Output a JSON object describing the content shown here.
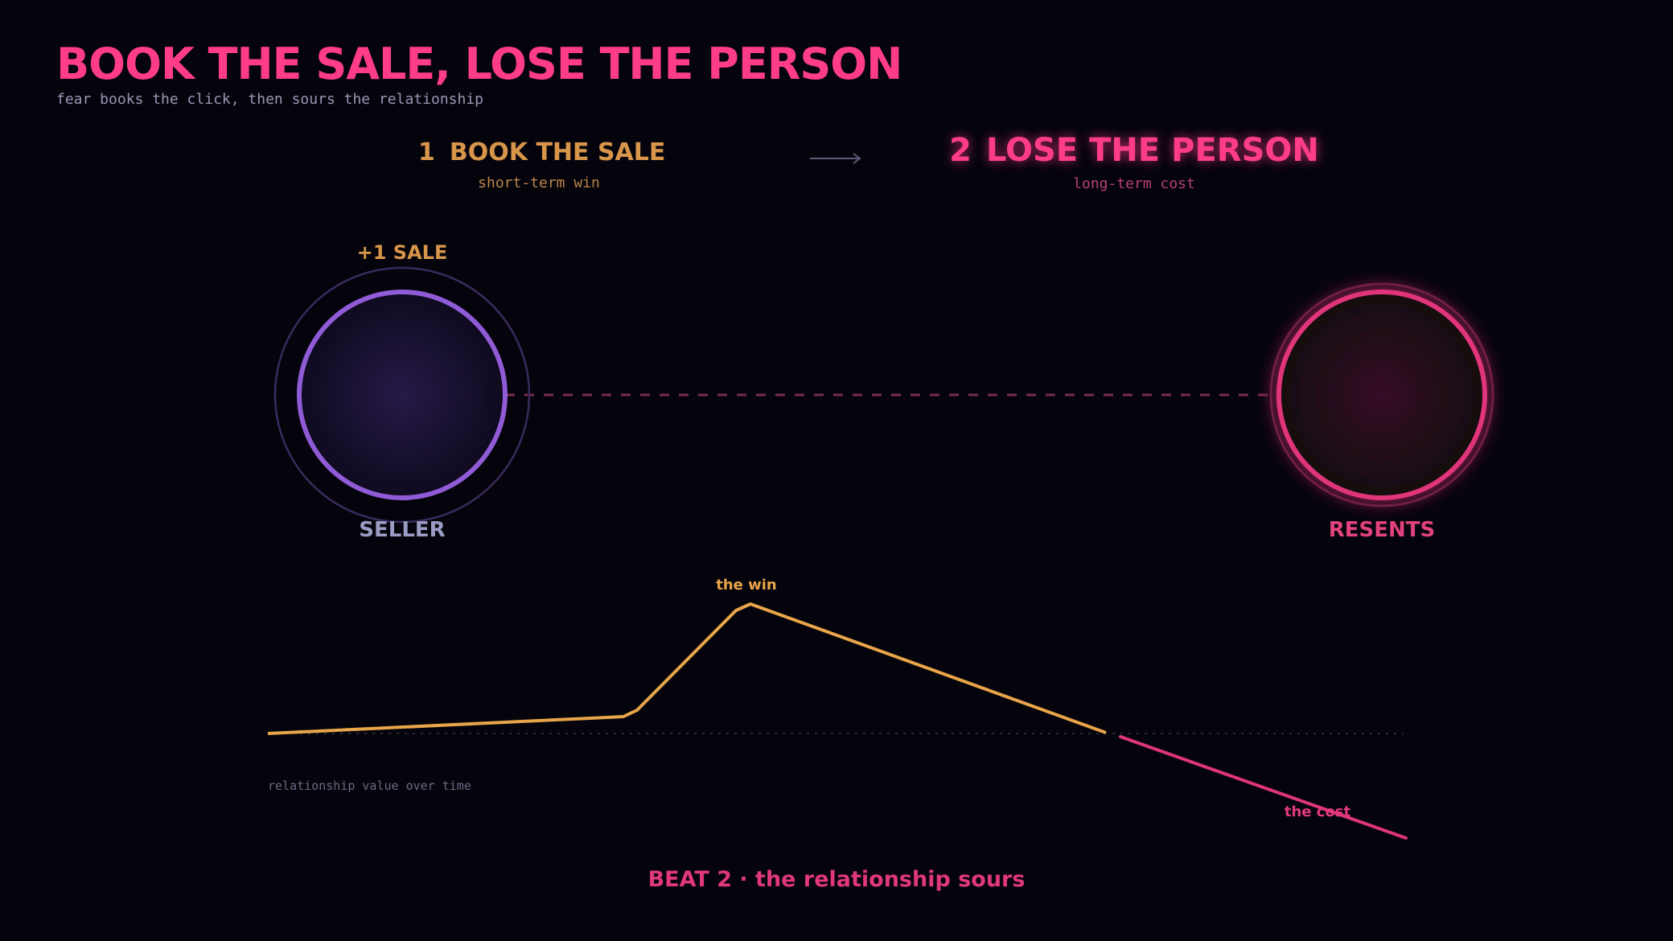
{
  "header": {
    "title": "BOOK THE SALE, LOSE THE PERSON",
    "subtitle": "fear books the click, then sours the relationship"
  },
  "steps": [
    {
      "num": "1",
      "label": "BOOK THE SALE",
      "sub": "short-term win",
      "color": "#d7964a"
    },
    {
      "num": "2",
      "label": "LOSE THE PERSON",
      "sub": "long-term cost",
      "color": "#ff3d86",
      "active": true
    }
  ],
  "nodes": {
    "seller": {
      "top_label": "+1 SALE",
      "label": "SELLER",
      "ring_color": "#8f5bd6"
    },
    "buyer": {
      "label": "RESENTS",
      "ring_color": "#e0357a"
    }
  },
  "relationship_chart": {
    "caption": "relationship value over time",
    "peak_label": "the win",
    "cost_label": "the cost",
    "win_color": "#e9a54a",
    "cost_color": "#e0357a"
  },
  "footer": {
    "beat": "BEAT 2 · the relationship sours"
  },
  "colors": {
    "background": "#05040c",
    "accent": "#ff3d86"
  }
}
